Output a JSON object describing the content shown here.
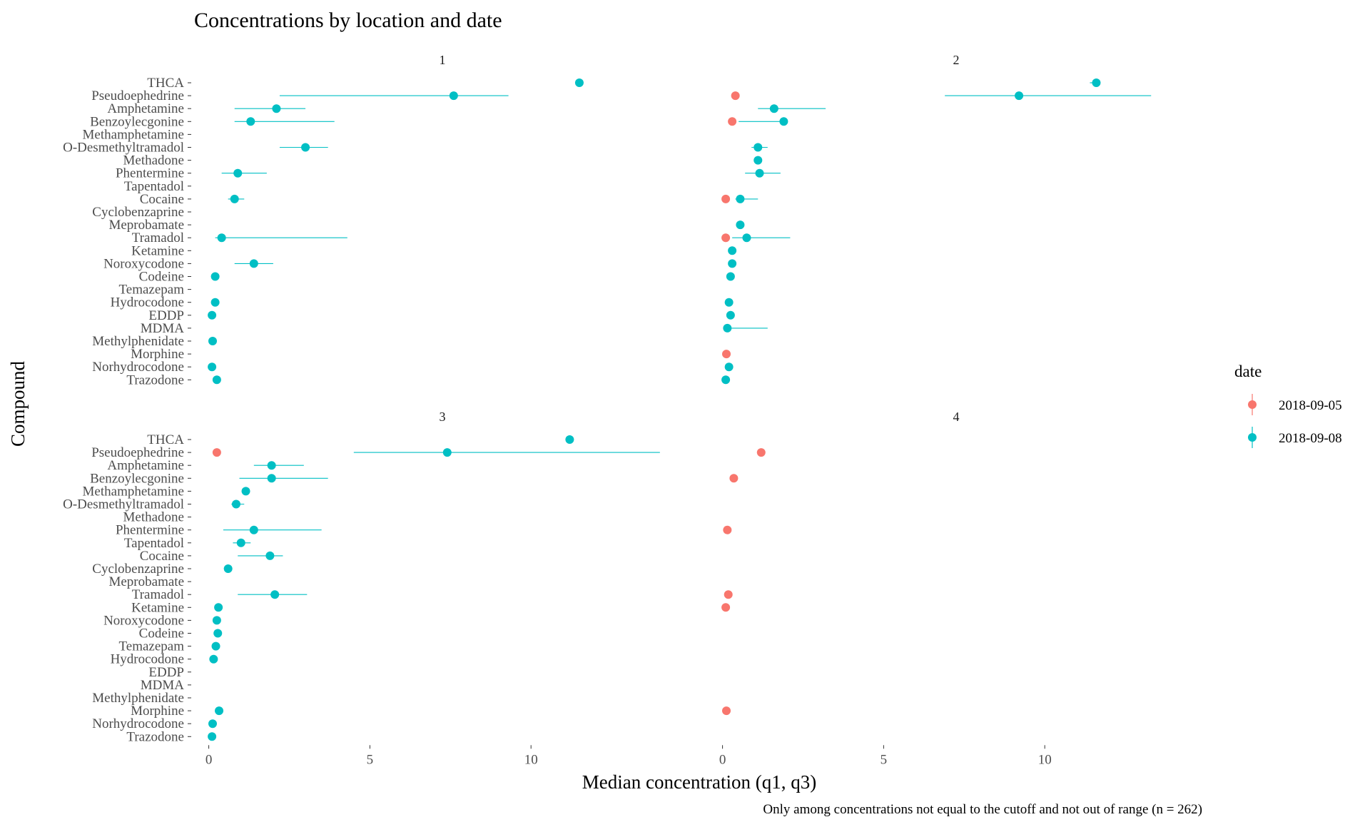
{
  "chart_data": {
    "type": "scatter",
    "title": "Concentrations by location and date",
    "xlabel": "Median concentration (q1, q3)",
    "ylabel": "Compound",
    "caption": "Only among concentrations not equal to the cutoff and not out of range (n = 262)",
    "facet_layout": "2x2",
    "free_x_scales": false,
    "xlim": [
      -0.5,
      15.0
    ],
    "x_ticks": [
      0,
      5,
      10
    ],
    "grid": false,
    "legend": {
      "title": "date",
      "position": "right",
      "entries": [
        {
          "name": "2018-09-05",
          "color": "#F8766D"
        },
        {
          "name": "2018-09-08",
          "color": "#00BFC4"
        }
      ]
    },
    "compounds": [
      "THCA",
      "Pseudoephedrine",
      "Amphetamine",
      "Benzoylecgonine",
      "Methamphetamine",
      "O-Desmethyltramadol",
      "Methadone",
      "Phentermine",
      "Tapentadol",
      "Cocaine",
      "Cyclobenzaprine",
      "Meprobamate",
      "Tramadol",
      "Ketamine",
      "Noroxycodone",
      "Codeine",
      "Temazepam",
      "Hydrocodone",
      "EDDP",
      "MDMA",
      "Methylphenidate",
      "Morphine",
      "Norhydrocodone",
      "Trazodone"
    ],
    "panels": [
      {
        "label": "1",
        "points": [
          {
            "compound": "THCA",
            "date": "2018-09-08",
            "median": 11.5
          },
          {
            "compound": "Pseudoephedrine",
            "date": "2018-09-08",
            "median": 7.6,
            "q1": 2.2,
            "q3": 9.3
          },
          {
            "compound": "Amphetamine",
            "date": "2018-09-08",
            "median": 2.1,
            "q1": 0.8,
            "q3": 3.0
          },
          {
            "compound": "Benzoylecgonine",
            "date": "2018-09-08",
            "median": 1.3,
            "q1": 0.8,
            "q3": 3.9
          },
          {
            "compound": "O-Desmethyltramadol",
            "date": "2018-09-08",
            "median": 3.0,
            "q1": 2.2,
            "q3": 3.7
          },
          {
            "compound": "Phentermine",
            "date": "2018-09-08",
            "median": 0.9,
            "q1": 0.4,
            "q3": 1.8
          },
          {
            "compound": "Cocaine",
            "date": "2018-09-08",
            "median": 0.8,
            "q1": 0.6,
            "q3": 1.1
          },
          {
            "compound": "Tramadol",
            "date": "2018-09-08",
            "median": 0.4,
            "q1": 0.2,
            "q3": 4.3
          },
          {
            "compound": "Noroxycodone",
            "date": "2018-09-08",
            "median": 1.4,
            "q1": 0.8,
            "q3": 2.0
          },
          {
            "compound": "Codeine",
            "date": "2018-09-08",
            "median": 0.2
          },
          {
            "compound": "Hydrocodone",
            "date": "2018-09-08",
            "median": 0.2
          },
          {
            "compound": "EDDP",
            "date": "2018-09-08",
            "median": 0.1
          },
          {
            "compound": "Methylphenidate",
            "date": "2018-09-08",
            "median": 0.12
          },
          {
            "compound": "Norhydrocodone",
            "date": "2018-09-08",
            "median": 0.1
          },
          {
            "compound": "Trazodone",
            "date": "2018-09-08",
            "median": 0.25
          }
        ]
      },
      {
        "label": "2",
        "points": [
          {
            "compound": "THCA",
            "date": "2018-09-08",
            "median": 11.6,
            "q1": 11.4,
            "q3": 11.7
          },
          {
            "compound": "Pseudoephedrine",
            "date": "2018-09-05",
            "median": 0.4
          },
          {
            "compound": "Pseudoephedrine",
            "date": "2018-09-08",
            "median": 9.2,
            "q1": 6.9,
            "q3": 13.3
          },
          {
            "compound": "Amphetamine",
            "date": "2018-09-08",
            "median": 1.6,
            "q1": 1.1,
            "q3": 3.2
          },
          {
            "compound": "Benzoylecgonine",
            "date": "2018-09-05",
            "median": 0.3
          },
          {
            "compound": "Benzoylecgonine",
            "date": "2018-09-08",
            "median": 1.9,
            "q1": 0.5,
            "q3": 2.0
          },
          {
            "compound": "O-Desmethyltramadol",
            "date": "2018-09-08",
            "median": 1.1,
            "q1": 0.9,
            "q3": 1.4
          },
          {
            "compound": "Methadone",
            "date": "2018-09-08",
            "median": 1.1
          },
          {
            "compound": "Phentermine",
            "date": "2018-09-08",
            "median": 1.15,
            "q1": 0.7,
            "q3": 1.8
          },
          {
            "compound": "Cocaine",
            "date": "2018-09-05",
            "median": 0.1
          },
          {
            "compound": "Cocaine",
            "date": "2018-09-08",
            "median": 0.55,
            "q1": 0.4,
            "q3": 1.1
          },
          {
            "compound": "Meprobamate",
            "date": "2018-09-08",
            "median": 0.55
          },
          {
            "compound": "Tramadol",
            "date": "2018-09-05",
            "median": 0.1
          },
          {
            "compound": "Tramadol",
            "date": "2018-09-08",
            "median": 0.75,
            "q1": 0.3,
            "q3": 2.1
          },
          {
            "compound": "Ketamine",
            "date": "2018-09-08",
            "median": 0.3
          },
          {
            "compound": "Noroxycodone",
            "date": "2018-09-08",
            "median": 0.3
          },
          {
            "compound": "Codeine",
            "date": "2018-09-08",
            "median": 0.25
          },
          {
            "compound": "Hydrocodone",
            "date": "2018-09-08",
            "median": 0.2
          },
          {
            "compound": "EDDP",
            "date": "2018-09-08",
            "median": 0.25
          },
          {
            "compound": "MDMA",
            "date": "2018-09-08",
            "median": 0.15,
            "q1": 0.1,
            "q3": 1.4
          },
          {
            "compound": "Morphine",
            "date": "2018-09-05",
            "median": 0.12
          },
          {
            "compound": "Norhydrocodone",
            "date": "2018-09-08",
            "median": 0.2
          },
          {
            "compound": "Trazodone",
            "date": "2018-09-08",
            "median": 0.1
          }
        ]
      },
      {
        "label": "3",
        "points": [
          {
            "compound": "THCA",
            "date": "2018-09-08",
            "median": 11.2
          },
          {
            "compound": "Pseudoephedrine",
            "date": "2018-09-05",
            "median": 0.25
          },
          {
            "compound": "Pseudoephedrine",
            "date": "2018-09-08",
            "median": 7.4,
            "q1": 4.5,
            "q3": 14.0
          },
          {
            "compound": "Amphetamine",
            "date": "2018-09-08",
            "median": 1.95,
            "q1": 1.4,
            "q3": 2.95
          },
          {
            "compound": "Benzoylecgonine",
            "date": "2018-09-08",
            "median": 1.95,
            "q1": 0.95,
            "q3": 3.7
          },
          {
            "compound": "Methamphetamine",
            "date": "2018-09-08",
            "median": 1.15
          },
          {
            "compound": "O-Desmethyltramadol",
            "date": "2018-09-08",
            "median": 0.85,
            "q1": 0.7,
            "q3": 1.1
          },
          {
            "compound": "Phentermine",
            "date": "2018-09-08",
            "median": 1.4,
            "q1": 0.45,
            "q3": 3.5
          },
          {
            "compound": "Tapentadol",
            "date": "2018-09-08",
            "median": 1.0,
            "q1": 0.75,
            "q3": 1.3
          },
          {
            "compound": "Cocaine",
            "date": "2018-09-08",
            "median": 1.9,
            "q1": 0.9,
            "q3": 2.3
          },
          {
            "compound": "Cyclobenzaprine",
            "date": "2018-09-08",
            "median": 0.6
          },
          {
            "compound": "Tramadol",
            "date": "2018-09-08",
            "median": 2.05,
            "q1": 0.9,
            "q3": 3.05
          },
          {
            "compound": "Ketamine",
            "date": "2018-09-08",
            "median": 0.3
          },
          {
            "compound": "Noroxycodone",
            "date": "2018-09-08",
            "median": 0.25
          },
          {
            "compound": "Codeine",
            "date": "2018-09-08",
            "median": 0.28
          },
          {
            "compound": "Temazepam",
            "date": "2018-09-08",
            "median": 0.22
          },
          {
            "compound": "Hydrocodone",
            "date": "2018-09-08",
            "median": 0.15
          },
          {
            "compound": "Morphine",
            "date": "2018-09-08",
            "median": 0.32
          },
          {
            "compound": "Norhydrocodone",
            "date": "2018-09-08",
            "median": 0.12
          },
          {
            "compound": "Trazodone",
            "date": "2018-09-08",
            "median": 0.1
          }
        ]
      },
      {
        "label": "4",
        "points": [
          {
            "compound": "Pseudoephedrine",
            "date": "2018-09-05",
            "median": 1.2
          },
          {
            "compound": "Benzoylecgonine",
            "date": "2018-09-05",
            "median": 0.35
          },
          {
            "compound": "Phentermine",
            "date": "2018-09-05",
            "median": 0.15
          },
          {
            "compound": "Tramadol",
            "date": "2018-09-05",
            "median": 0.18
          },
          {
            "compound": "Ketamine",
            "date": "2018-09-05",
            "median": 0.1
          },
          {
            "compound": "Morphine",
            "date": "2018-09-05",
            "median": 0.12
          }
        ]
      }
    ]
  }
}
